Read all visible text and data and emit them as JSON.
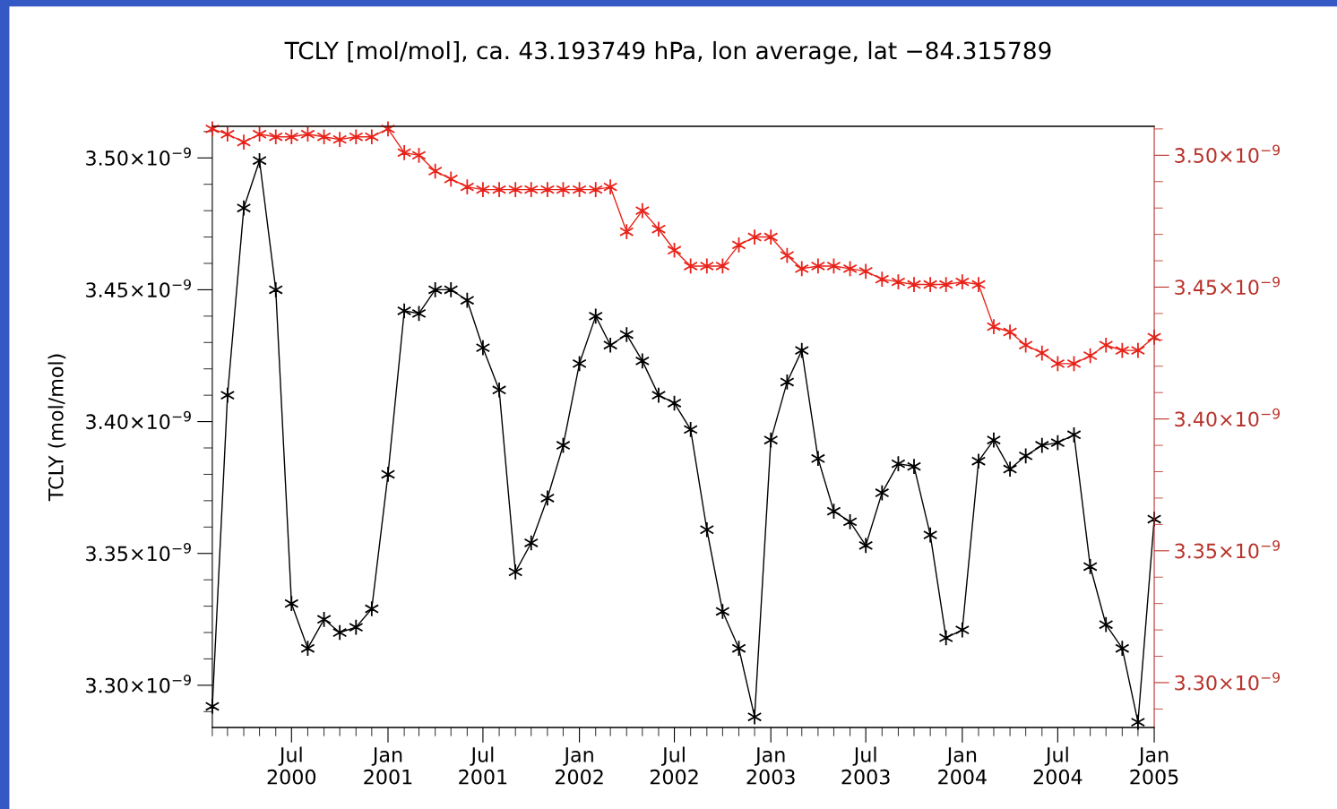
{
  "chart_data": {
    "type": "line",
    "title": "TCLY [mol/mol], ca. 43.193749 hPa, lon average, lat −84.315789",
    "ylabel": "TCLY (mol/mol)",
    "x": [
      "2000-02",
      "2000-03",
      "2000-04",
      "2000-05",
      "2000-06",
      "2000-07",
      "2000-08",
      "2000-09",
      "2000-10",
      "2000-11",
      "2000-12",
      "2001-01",
      "2001-02",
      "2001-03",
      "2001-04",
      "2001-05",
      "2001-06",
      "2001-07",
      "2001-08",
      "2001-09",
      "2001-10",
      "2001-11",
      "2001-12",
      "2002-01",
      "2002-02",
      "2002-03",
      "2002-04",
      "2002-05",
      "2002-06",
      "2002-07",
      "2002-08",
      "2002-09",
      "2002-10",
      "2002-11",
      "2002-12",
      "2003-01",
      "2003-02",
      "2003-03",
      "2003-04",
      "2003-05",
      "2003-06",
      "2003-07",
      "2003-08",
      "2003-09",
      "2003-10",
      "2003-11",
      "2003-12",
      "2004-01",
      "2004-02",
      "2004-03",
      "2004-04",
      "2004-05",
      "2004-06",
      "2004-07",
      "2004-08",
      "2004-09",
      "2004-10",
      "2004-11",
      "2004-12",
      "2005-01"
    ],
    "series": [
      {
        "color": "#000000",
        "values": [
          3.292e-09,
          3.41e-09,
          3.481e-09,
          3.499e-09,
          3.45e-09,
          3.331e-09,
          3.314e-09,
          3.325e-09,
          3.32e-09,
          3.322e-09,
          3.329e-09,
          3.38e-09,
          3.442e-09,
          3.441e-09,
          3.45e-09,
          3.45e-09,
          3.446e-09,
          3.428e-09,
          3.412e-09,
          3.343e-09,
          3.354e-09,
          3.371e-09,
          3.391e-09,
          3.422e-09,
          3.44e-09,
          3.429e-09,
          3.433e-09,
          3.423e-09,
          3.41e-09,
          3.407e-09,
          3.397e-09,
          3.359e-09,
          3.328e-09,
          3.314e-09,
          3.288e-09,
          3.393e-09,
          3.415e-09,
          3.427e-09,
          3.386e-09,
          3.366e-09,
          3.362e-09,
          3.353e-09,
          3.373e-09,
          3.384e-09,
          3.383e-09,
          3.357e-09,
          3.318e-09,
          3.321e-09,
          3.385e-09,
          3.393e-09,
          3.382e-09,
          3.387e-09,
          3.391e-09,
          3.392e-09,
          3.395e-09,
          3.345e-09,
          3.323e-09,
          3.314e-09,
          3.286e-09,
          3.363e-09
        ]
      },
      {
        "color": "#e8231a",
        "axis": "y2",
        "values": [
          3.51e-09,
          3.508e-09,
          3.505e-09,
          3.508e-09,
          3.507e-09,
          3.507e-09,
          3.508e-09,
          3.507e-09,
          3.506e-09,
          3.507e-09,
          3.507e-09,
          3.51e-09,
          3.501e-09,
          3.5e-09,
          3.494e-09,
          3.491e-09,
          3.488e-09,
          3.487e-09,
          3.487e-09,
          3.487e-09,
          3.487e-09,
          3.487e-09,
          3.487e-09,
          3.487e-09,
          3.487e-09,
          3.488e-09,
          3.471e-09,
          3.479e-09,
          3.472e-09,
          3.464e-09,
          3.458e-09,
          3.458e-09,
          3.458e-09,
          3.466e-09,
          3.469e-09,
          3.469e-09,
          3.462e-09,
          3.457e-09,
          3.458e-09,
          3.458e-09,
          3.457e-09,
          3.456e-09,
          3.453e-09,
          3.452e-09,
          3.451e-09,
          3.451e-09,
          3.451e-09,
          3.452e-09,
          3.451e-09,
          3.435e-09,
          3.433e-09,
          3.428e-09,
          3.425e-09,
          3.421e-09,
          3.421e-09,
          3.424e-09,
          3.428e-09,
          3.426e-09,
          3.426e-09,
          3.431e-09
        ]
      }
    ],
    "marker": "cross",
    "line_style": "solid",
    "xlim": [
      "2000-02",
      "2005-01"
    ],
    "xticks": [
      {
        "value": "2000-02",
        "label": null
      },
      {
        "value": "2000-03",
        "label": null
      },
      {
        "value": "2000-04",
        "label": null
      },
      {
        "value": "2000-05",
        "label": null
      },
      {
        "value": "2000-06",
        "label": null
      },
      {
        "value": "2000-07",
        "label": "Jul\n2000"
      },
      {
        "value": "2000-08",
        "label": null
      },
      {
        "value": "2000-09",
        "label": null
      },
      {
        "value": "2000-10",
        "label": null
      },
      {
        "value": "2000-11",
        "label": null
      },
      {
        "value": "2000-12",
        "label": null
      },
      {
        "value": "2001-01",
        "label": "Jan\n2001"
      },
      {
        "value": "2001-02",
        "label": null
      },
      {
        "value": "2001-03",
        "label": null
      },
      {
        "value": "2001-04",
        "label": null
      },
      {
        "value": "2001-05",
        "label": null
      },
      {
        "value": "2001-06",
        "label": null
      },
      {
        "value": "2001-07",
        "label": "Jul\n2001"
      },
      {
        "value": "2001-08",
        "label": null
      },
      {
        "value": "2001-09",
        "label": null
      },
      {
        "value": "2001-10",
        "label": null
      },
      {
        "value": "2001-11",
        "label": null
      },
      {
        "value": "2001-12",
        "label": null
      },
      {
        "value": "2002-01",
        "label": "Jan\n2002"
      },
      {
        "value": "2002-02",
        "label": null
      },
      {
        "value": "2002-03",
        "label": null
      },
      {
        "value": "2002-04",
        "label": null
      },
      {
        "value": "2002-05",
        "label": null
      },
      {
        "value": "2002-06",
        "label": null
      },
      {
        "value": "2002-07",
        "label": "Jul\n2002"
      },
      {
        "value": "2002-08",
        "label": null
      },
      {
        "value": "2002-09",
        "label": null
      },
      {
        "value": "2002-10",
        "label": null
      },
      {
        "value": "2002-11",
        "label": null
      },
      {
        "value": "2002-12",
        "label": null
      },
      {
        "value": "2003-01",
        "label": "Jan\n2003"
      },
      {
        "value": "2003-02",
        "label": null
      },
      {
        "value": "2003-03",
        "label": null
      },
      {
        "value": "2003-04",
        "label": null
      },
      {
        "value": "2003-05",
        "label": null
      },
      {
        "value": "2003-06",
        "label": null
      },
      {
        "value": "2003-07",
        "label": "Jul\n2003"
      },
      {
        "value": "2003-08",
        "label": null
      },
      {
        "value": "2003-09",
        "label": null
      },
      {
        "value": "2003-10",
        "label": null
      },
      {
        "value": "2003-11",
        "label": null
      },
      {
        "value": "2003-12",
        "label": null
      },
      {
        "value": "2004-01",
        "label": "Jan\n2004"
      },
      {
        "value": "2004-02",
        "label": null
      },
      {
        "value": "2004-03",
        "label": null
      },
      {
        "value": "2004-04",
        "label": null
      },
      {
        "value": "2004-05",
        "label": null
      },
      {
        "value": "2004-06",
        "label": null
      },
      {
        "value": "2004-07",
        "label": "Jul\n2004"
      },
      {
        "value": "2004-08",
        "label": null
      },
      {
        "value": "2004-09",
        "label": null
      },
      {
        "value": "2004-10",
        "label": null
      },
      {
        "value": "2004-11",
        "label": null
      },
      {
        "value": "2004-12",
        "label": null
      },
      {
        "value": "2005-01",
        "label": "Jan\n2005"
      }
    ],
    "ylim": [
      3.284e-09,
      3.512e-09
    ],
    "yticks": [
      {
        "value": 3.29e-09,
        "label": null
      },
      {
        "value": 3.3e-09,
        "label": "3.30×10$^{−9}$"
      },
      {
        "value": 3.31e-09,
        "label": null
      },
      {
        "value": 3.32e-09,
        "label": null
      },
      {
        "value": 3.33e-09,
        "label": null
      },
      {
        "value": 3.34e-09,
        "label": null
      },
      {
        "value": 3.35e-09,
        "label": "3.35×10$^{−9}$"
      },
      {
        "value": 3.36e-09,
        "label": null
      },
      {
        "value": 3.37e-09,
        "label": null
      },
      {
        "value": 3.38e-09,
        "label": null
      },
      {
        "value": 3.39e-09,
        "label": null
      },
      {
        "value": 3.4e-09,
        "label": "3.40×10$^{−9}$"
      },
      {
        "value": 3.41e-09,
        "label": null
      },
      {
        "value": 3.42e-09,
        "label": null
      },
      {
        "value": 3.43e-09,
        "label": null
      },
      {
        "value": 3.44e-09,
        "label": null
      },
      {
        "value": 3.45e-09,
        "label": "3.45×10$^{−9}$"
      },
      {
        "value": 3.46e-09,
        "label": null
      },
      {
        "value": 3.47e-09,
        "label": null
      },
      {
        "value": 3.48e-09,
        "label": null
      },
      {
        "value": 3.49e-09,
        "label": null
      },
      {
        "value": 3.5e-09,
        "label": "3.50×10$^{−9}$"
      },
      {
        "value": 3.51e-09,
        "label": null
      }
    ],
    "y2lim": [
      3.283e-09,
      3.511e-09
    ],
    "y2ticks": [
      {
        "value": 3.29e-09,
        "label": null
      },
      {
        "value": 3.3e-09,
        "label": "3.30×10$^{−9}$"
      },
      {
        "value": 3.31e-09,
        "label": null
      },
      {
        "value": 3.32e-09,
        "label": null
      },
      {
        "value": 3.33e-09,
        "label": null
      },
      {
        "value": 3.34e-09,
        "label": null
      },
      {
        "value": 3.35e-09,
        "label": "3.35×10$^{−9}$"
      },
      {
        "value": 3.36e-09,
        "label": null
      },
      {
        "value": 3.37e-09,
        "label": null
      },
      {
        "value": 3.38e-09,
        "label": null
      },
      {
        "value": 3.39e-09,
        "label": null
      },
      {
        "value": 3.4e-09,
        "label": "3.40×10$^{−9}$"
      },
      {
        "value": 3.41e-09,
        "label": null
      },
      {
        "value": 3.42e-09,
        "label": null
      },
      {
        "value": 3.43e-09,
        "label": null
      },
      {
        "value": 3.44e-09,
        "label": null
      },
      {
        "value": 3.45e-09,
        "label": "3.45×10$^{−9}$"
      },
      {
        "value": 3.46e-09,
        "label": null
      },
      {
        "value": 3.47e-09,
        "label": null
      },
      {
        "value": 3.48e-09,
        "label": null
      },
      {
        "value": 3.49e-09,
        "label": null
      },
      {
        "value": 3.5e-09,
        "label": "3.50×10$^{−9}$"
      },
      {
        "value": 3.51e-09,
        "label": null
      }
    ]
  }
}
